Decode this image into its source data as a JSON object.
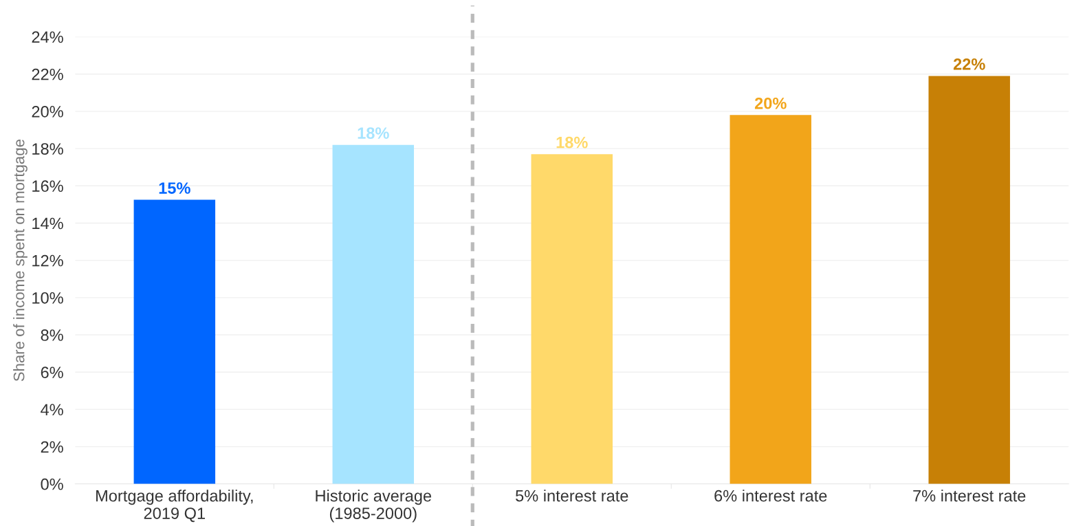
{
  "chart_data": {
    "type": "bar",
    "ylabel": "Share of income spent on mortgage",
    "categories": [
      "Mortgage affordability,\n2019 Q1",
      "Historic average\n(1985-2000)",
      "5% interest rate",
      "6% interest rate",
      "7% interest rate"
    ],
    "values": [
      15.25,
      18.2,
      17.7,
      19.8,
      21.9
    ],
    "colors": [
      "#0066ff",
      "#a6e4ff",
      "#ffd96a",
      "#f2a51a",
      "#c78006"
    ],
    "value_labels": [
      "15%",
      "18%",
      "18%",
      "20%",
      "22%"
    ],
    "ylim": [
      0,
      24
    ],
    "yticks": [
      {
        "value": 0,
        "label": "0%"
      },
      {
        "value": 2,
        "label": "2%"
      },
      {
        "value": 4,
        "label": "4%"
      },
      {
        "value": 6,
        "label": "6%"
      },
      {
        "value": 8,
        "label": "8%"
      },
      {
        "value": 10,
        "label": "10%"
      },
      {
        "value": 12,
        "label": "12%"
      },
      {
        "value": 14,
        "label": "14%"
      },
      {
        "value": 16,
        "label": "16%"
      },
      {
        "value": 18,
        "label": "18%"
      },
      {
        "value": 20,
        "label": "20%"
      },
      {
        "value": 22,
        "label": "22%"
      },
      {
        "value": 24,
        "label": "24%"
      }
    ],
    "grid": "y",
    "legend": false
  }
}
